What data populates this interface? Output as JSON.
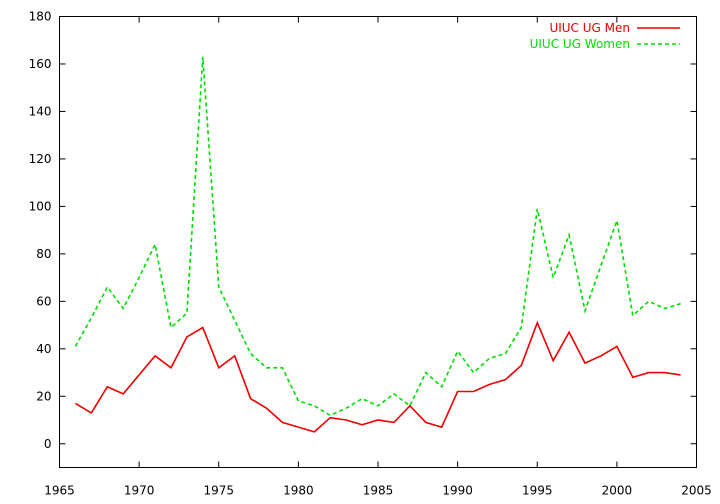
{
  "chart_data": {
    "type": "line",
    "title": "",
    "xlabel": "",
    "ylabel": "",
    "xlim": [
      1965,
      2005
    ],
    "ylim": [
      -10,
      180
    ],
    "xticks": [
      1965,
      1970,
      1975,
      1980,
      1985,
      1990,
      1995,
      2000,
      2005
    ],
    "yticks": [
      0,
      20,
      40,
      60,
      80,
      100,
      120,
      140,
      160,
      180
    ],
    "grid": false,
    "legend_position": "top-right",
    "x": [
      1966,
      1967,
      1968,
      1969,
      1970,
      1971,
      1972,
      1973,
      1974,
      1975,
      1976,
      1977,
      1978,
      1979,
      1980,
      1981,
      1982,
      1983,
      1984,
      1985,
      1986,
      1987,
      1988,
      1989,
      1990,
      1991,
      1992,
      1993,
      1994,
      1995,
      1996,
      1997,
      1998,
      1999,
      2000,
      2001,
      2002,
      2003,
      2004
    ],
    "series": [
      {
        "name": "UIUC UG Men",
        "color": "#ee0000",
        "style": "solid",
        "values": [
          17,
          13,
          24,
          21,
          29,
          37,
          32,
          45,
          49,
          32,
          37,
          19,
          15,
          9,
          7,
          5,
          11,
          10,
          8,
          10,
          9,
          16,
          9,
          7,
          22,
          22,
          25,
          27,
          33,
          51,
          35,
          47,
          34,
          37,
          41,
          28,
          30,
          30,
          29
        ]
      },
      {
        "name": "UIUC UG Women",
        "color": "#00dd00",
        "style": "dashed",
        "values": [
          41,
          53,
          66,
          57,
          70,
          84,
          49,
          55,
          163,
          66,
          52,
          38,
          32,
          32,
          18,
          16,
          12,
          15,
          19,
          16,
          21,
          16,
          30,
          24,
          39,
          30,
          36,
          38,
          49,
          99,
          70,
          88,
          56,
          75,
          94,
          54,
          60,
          57,
          59
        ]
      }
    ]
  }
}
